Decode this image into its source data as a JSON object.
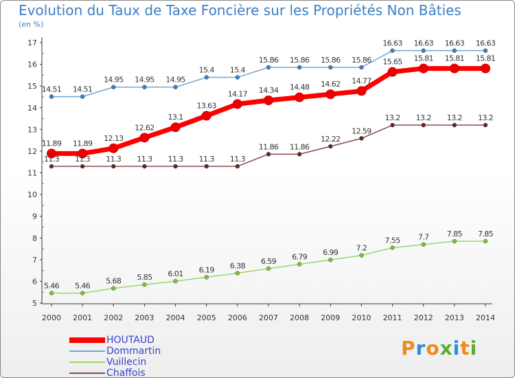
{
  "header": {
    "title": "Evolution du Taux de Taxe Foncière sur les Propriétés Non Bâties",
    "subtitle": "(en %)"
  },
  "logo": {
    "letters": [
      "P",
      "r",
      "o",
      "x",
      "i",
      "t",
      "i"
    ],
    "colors": [
      "#f08a1c",
      "#2a8fd6",
      "#f08a1c",
      "#58b030",
      "#2a8fd6",
      "#f08a1c",
      "#58b030"
    ]
  },
  "chart_data": {
    "type": "line",
    "title": "Evolution du Taux de Taxe Foncière sur les Propriétés Non Bâties",
    "ylabel": "(en %)",
    "ylim": [
      5,
      17
    ],
    "yticks": [
      5,
      6,
      7,
      8,
      9,
      10,
      11,
      12,
      13,
      14,
      15,
      16,
      17
    ],
    "grid": false,
    "legend_position": "bottom-left",
    "x": [
      "2000",
      "2001",
      "2002",
      "2003",
      "2004",
      "2005",
      "2006",
      "2007",
      "2008",
      "2009",
      "2010",
      "2011",
      "2012",
      "2013",
      "2014"
    ],
    "series": [
      {
        "name": "Dommartin",
        "color": "#6fa6d6",
        "marker_color": "#3a80c0",
        "values": [
          14.51,
          14.51,
          14.95,
          14.95,
          14.95,
          15.4,
          15.4,
          15.86,
          15.86,
          15.86,
          15.86,
          16.63,
          16.63,
          16.63,
          16.63
        ],
        "labels": [
          "14.51",
          "14.51",
          "14.95",
          "14.95",
          "14.95",
          "15.4",
          "15.4",
          "15.86",
          "15.86",
          "15.86",
          "15.86",
          "16.63",
          "16.63",
          "16.63",
          "16.63"
        ]
      },
      {
        "name": "Chaffois",
        "color": "#8b4a4a",
        "marker_color": "#6a2020",
        "values": [
          11.3,
          11.3,
          11.3,
          11.3,
          11.3,
          11.3,
          11.3,
          11.86,
          11.86,
          12.22,
          12.59,
          13.2,
          13.2,
          13.2,
          13.2
        ],
        "labels": [
          "11.3",
          "11.3",
          "11.3",
          "11.3",
          "11.3",
          "11.3",
          "11.3",
          "11.86",
          "11.86",
          "12.22",
          "12.59",
          "13.2",
          "13.2",
          "13.2",
          "13.2"
        ]
      },
      {
        "name": "HOUTAUD",
        "color": "#ff0000",
        "marker_color": "#ee0000",
        "values": [
          11.89,
          11.89,
          12.13,
          12.62,
          13.1,
          13.63,
          14.17,
          14.34,
          14.48,
          14.62,
          14.77,
          15.65,
          15.81,
          15.81,
          15.81
        ],
        "labels": [
          "11.89",
          "11.89",
          "12.13",
          "12.62",
          "13.1",
          "13.63",
          "14.17",
          "14.34",
          "14.48",
          "14.62",
          "14.77",
          "15.65",
          "15.81",
          "15.81",
          "15.81"
        ]
      },
      {
        "name": "Vuillecin",
        "color": "#9ad66a",
        "marker_color": "#7cc040",
        "values": [
          5.46,
          5.46,
          5.68,
          5.85,
          6.01,
          6.19,
          6.38,
          6.59,
          6.79,
          6.99,
          7.2,
          7.55,
          7.7,
          7.85,
          7.85
        ],
        "labels": [
          "5.46",
          "5.46",
          "5.68",
          "5.85",
          "6.01",
          "6.19",
          "6.38",
          "6.59",
          "6.79",
          "6.99",
          "7.2",
          "7.55",
          "7.7",
          "7.85",
          "7.85"
        ]
      }
    ],
    "legend_order": [
      "HOUTAUD",
      "Dommartin",
      "Vuillecin",
      "Chaffois"
    ]
  }
}
